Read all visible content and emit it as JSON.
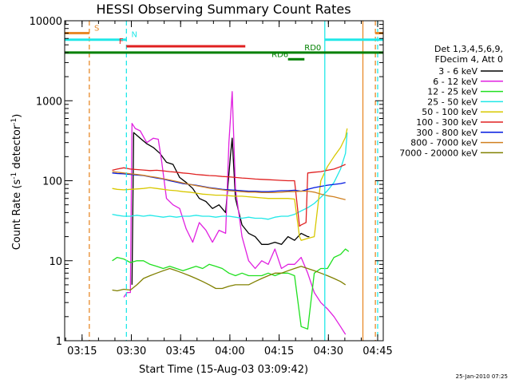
{
  "chart_data": {
    "type": "line",
    "title": "HESSI Observing Summary Count Rates",
    "xlabel": "Start Time (15-Aug-03 03:09:42)",
    "ylabel": "Count Rate (s⁻¹ detector⁻¹)",
    "ylabel_main": "Count Rate (s",
    "ylabel_sup1": "-1",
    "ylabel_mid": " detector",
    "ylabel_sup2": "-1",
    "ylabel_end": ")",
    "x_unit": "minutes since 03:09:42",
    "xlim": [
      0,
      97
    ],
    "ylim": [
      1,
      10000
    ],
    "yscale": "log",
    "x_ticks": [
      {
        "x": 5.3,
        "label": "03:15"
      },
      {
        "x": 20.3,
        "label": "03:30"
      },
      {
        "x": 35.3,
        "label": "03:45"
      },
      {
        "x": 50.3,
        "label": "04:00"
      },
      {
        "x": 65.3,
        "label": "04:15"
      },
      {
        "x": 80.3,
        "label": "04:30"
      },
      {
        "x": 95.3,
        "label": "04:45"
      }
    ],
    "y_ticks": [
      {
        "y": 1,
        "label": "1"
      },
      {
        "y": 10,
        "label": "10"
      },
      {
        "y": 100,
        "label": "100"
      },
      {
        "y": 1000,
        "label": "1000"
      },
      {
        "y": 10000,
        "label": "10000"
      }
    ],
    "legend": {
      "placement": "right",
      "header1": "Det 1,3,4,5,6,9,",
      "header2": "FDecim 4, Att 0",
      "entries": [
        {
          "label": "3 - 6 keV",
          "color": "#000000"
        },
        {
          "label": "6 - 12 keV",
          "color": "#e020e0"
        },
        {
          "label": "12 - 25 keV",
          "color": "#20e020"
        },
        {
          "label": "25 - 50 keV",
          "color": "#20e8e8"
        },
        {
          "label": "50 - 100 keV",
          "color": "#d8c800"
        },
        {
          "label": "100 - 300 keV",
          "color": "#e02020"
        },
        {
          "label": "300 - 800 keV",
          "color": "#0018e0"
        },
        {
          "label": "800 - 7000 keV",
          "color": "#d08020"
        },
        {
          "label": "7000 - 20000 keV",
          "color": "#808000"
        }
      ]
    },
    "series": [
      {
        "name": "3 - 6 keV",
        "color": "#000000",
        "x": [
          20.5,
          21,
          23,
          25,
          27,
          29,
          31,
          33,
          35,
          37,
          39,
          41,
          43,
          45,
          47,
          49,
          50.5,
          51,
          52,
          54,
          56,
          58,
          60,
          62,
          64,
          66,
          68,
          70,
          72,
          74,
          74.5
        ],
        "y": [
          5,
          400,
          340,
          290,
          260,
          220,
          170,
          160,
          110,
          95,
          80,
          60,
          55,
          45,
          50,
          40,
          210,
          340,
          60,
          28,
          22,
          20,
          16,
          16,
          17,
          16,
          20,
          18,
          22,
          20,
          20
        ]
      },
      {
        "name": "6 - 12 keV",
        "color": "#e020e0",
        "x": [
          18,
          19,
          20,
          20.5,
          21.5,
          23,
          25,
          27,
          28.5,
          29.5,
          31,
          33,
          35,
          37,
          39,
          41,
          43,
          45,
          47,
          49,
          50,
          51,
          52,
          53,
          54,
          56,
          58,
          60,
          62,
          64,
          66,
          68,
          70,
          72,
          74,
          76,
          78,
          80,
          82,
          84,
          85.5
        ],
        "y": [
          3.5,
          4,
          4,
          520,
          450,
          420,
          300,
          340,
          330,
          180,
          60,
          50,
          45,
          25,
          17,
          30,
          24,
          17,
          24,
          22,
          300,
          1300,
          80,
          40,
          20,
          10,
          8,
          10,
          9,
          14,
          8,
          9,
          9,
          11,
          7,
          4,
          3,
          2.5,
          2,
          1.5,
          1.2
        ]
      },
      {
        "name": "12 - 25 keV",
        "color": "#20e020",
        "x": [
          14.5,
          16,
          18,
          20,
          22,
          24,
          26,
          28,
          30,
          32,
          34,
          36,
          38,
          40,
          42,
          44,
          46,
          48,
          50,
          52,
          54,
          56,
          58,
          60,
          62,
          64,
          66,
          68,
          70,
          72,
          74,
          76,
          78,
          80,
          82,
          84,
          85.5,
          86.5
        ],
        "y": [
          10,
          11,
          10.5,
          9.5,
          10,
          10,
          9,
          8.5,
          8,
          8.5,
          8,
          7.5,
          8,
          8.5,
          8,
          9,
          8.5,
          8,
          7,
          6.5,
          7,
          6.5,
          6.5,
          6.5,
          7,
          6.5,
          7,
          7,
          6.5,
          1.5,
          1.4,
          7,
          8,
          8,
          11,
          12,
          14,
          13
        ]
      },
      {
        "name": "25 - 50 keV",
        "color": "#20e8e8",
        "x": [
          14.5,
          16,
          18,
          20,
          22,
          24,
          26,
          28,
          30,
          32,
          34,
          36,
          38,
          40,
          42,
          44,
          46,
          48,
          50,
          52,
          54,
          56,
          58,
          60,
          62,
          64,
          66,
          68,
          70,
          72,
          74,
          76,
          78,
          80,
          82,
          84,
          85.5,
          86
        ],
        "y": [
          38,
          37,
          36,
          36,
          37,
          36,
          37,
          36,
          35,
          36,
          35,
          36,
          36,
          37,
          36,
          36,
          35,
          36,
          36,
          35,
          34,
          35,
          34,
          34,
          33,
          35,
          36,
          36,
          38,
          42,
          46,
          52,
          62,
          75,
          95,
          140,
          220,
          400
        ]
      },
      {
        "name": "50 - 100 keV",
        "color": "#d8c800",
        "x": [
          14.5,
          16,
          18,
          20,
          22,
          24,
          26,
          28,
          30,
          32,
          34,
          36,
          38,
          40,
          42,
          44,
          46,
          48,
          50,
          52,
          54,
          56,
          58,
          60,
          62,
          64,
          66,
          68,
          70,
          71.5,
          72,
          74,
          76,
          78,
          80,
          82,
          84,
          85.5,
          86
        ],
        "y": [
          80,
          78,
          77,
          78,
          79,
          80,
          82,
          80,
          78,
          76,
          75,
          73,
          72,
          70,
          68,
          67,
          66,
          66,
          65,
          64,
          64,
          63,
          62,
          61,
          60,
          60,
          60,
          60,
          59,
          20,
          18,
          19,
          20,
          100,
          150,
          200,
          260,
          350,
          450
        ]
      },
      {
        "name": "100 - 300 keV",
        "color": "#e02020",
        "x": [
          14.5,
          16,
          18,
          20,
          22,
          24,
          26,
          28,
          30,
          32,
          34,
          36,
          38,
          40,
          42,
          44,
          46,
          48,
          50,
          52,
          54,
          56,
          58,
          60,
          62,
          64,
          66,
          68,
          70,
          71.5,
          72,
          73.5,
          74,
          76,
          78,
          80,
          82,
          84,
          85.5
        ],
        "y": [
          135,
          140,
          145,
          140,
          138,
          136,
          134,
          135,
          133,
          130,
          128,
          125,
          123,
          120,
          118,
          116,
          115,
          113,
          112,
          110,
          108,
          107,
          105,
          104,
          103,
          102,
          101,
          100,
          100,
          27,
          28,
          30,
          125,
          128,
          130,
          135,
          140,
          150,
          160
        ]
      },
      {
        "name": "300 - 800 keV",
        "color": "#0018e0",
        "x": [
          14.5,
          16,
          18,
          20,
          22,
          24,
          26,
          28,
          30,
          32,
          34,
          36,
          38,
          40,
          42,
          44,
          46,
          48,
          50,
          52,
          54,
          56,
          58,
          60,
          62,
          64,
          66,
          68,
          70,
          72,
          74,
          76,
          78,
          80,
          82,
          84,
          85.5
        ],
        "y": [
          125,
          123,
          122,
          120,
          118,
          116,
          112,
          108,
          105,
          100,
          96,
          92,
          90,
          88,
          85,
          82,
          80,
          78,
          77,
          76,
          75,
          74,
          74,
          73,
          73,
          74,
          75,
          75,
          76,
          74,
          78,
          82,
          85,
          88,
          90,
          92,
          95
        ]
      },
      {
        "name": "800 - 7000 keV",
        "color": "#d08020",
        "x": [
          14.5,
          16,
          18,
          20,
          22,
          24,
          26,
          28,
          30,
          32,
          34,
          36,
          38,
          40,
          42,
          44,
          46,
          48,
          50,
          52,
          54,
          56,
          58,
          60,
          62,
          64,
          66,
          68,
          70,
          72,
          74,
          76,
          78,
          80,
          82,
          84,
          85.5
        ],
        "y": [
          130,
          128,
          125,
          122,
          120,
          117,
          113,
          110,
          106,
          102,
          98,
          94,
          90,
          87,
          84,
          81,
          79,
          77,
          75,
          74,
          73,
          72,
          72,
          71,
          71,
          71,
          72,
          73,
          73,
          74,
          74,
          72,
          68,
          65,
          63,
          60,
          58
        ]
      },
      {
        "name": "7000 - 20000 keV",
        "color": "#808000",
        "x": [
          14.5,
          16,
          18,
          20,
          22,
          24,
          26,
          28,
          30,
          32,
          34,
          36,
          38,
          40,
          42,
          44,
          46,
          48,
          50,
          52,
          54,
          56,
          58,
          60,
          62,
          64,
          66,
          68,
          70,
          72,
          74,
          76,
          78,
          80,
          82,
          84,
          85.5
        ],
        "y": [
          4.3,
          4.2,
          4.4,
          4.3,
          5,
          6,
          6.5,
          7,
          7.5,
          8,
          7.5,
          7,
          6.5,
          6,
          5.5,
          5,
          4.5,
          4.5,
          4.8,
          5,
          5,
          5,
          5.5,
          6,
          6.5,
          7,
          7,
          7.5,
          8,
          8.5,
          8,
          7.5,
          7,
          6.5,
          6,
          5.5,
          5
        ]
      }
    ],
    "verticals": [
      {
        "x": 7.5,
        "color": "#e88a2a",
        "style": "dashed"
      },
      {
        "x": 18.8,
        "color": "#20e8e8",
        "style": "dashed"
      },
      {
        "x": 79.2,
        "color": "#20e8e8",
        "style": "solid"
      },
      {
        "x": 90.8,
        "color": "#e88a2a",
        "style": "solid"
      },
      {
        "x": 94.6,
        "color": "#e88a2a",
        "style": "dashed"
      },
      {
        "x": 95.3,
        "color": "#20e8e8",
        "style": "dashed"
      }
    ],
    "flag_bars": [
      {
        "label": "S",
        "color": "#e88a2a",
        "x_start": 0,
        "x_end": 7.5,
        "y": 7000,
        "label_x": 9
      },
      {
        "label": "",
        "color": "#e88a2a",
        "x_start": 94.6,
        "x_end": 97,
        "y": 7000,
        "label_x": null
      },
      {
        "label": "N",
        "color": "#20e8e8",
        "x_start": 0,
        "x_end": 18.8,
        "y": 5800,
        "label_x": 20.3
      },
      {
        "label": "",
        "color": "#20e8e8",
        "x_start": 79.2,
        "x_end": 97,
        "y": 5800,
        "label_x": null
      },
      {
        "label": "F",
        "color": "#e02020",
        "x_start": 18.8,
        "x_end": 55,
        "y": 4800,
        "label_x": 16.5
      },
      {
        "label": "RD0",
        "color": "#008000",
        "x_start": 0,
        "x_end": 97,
        "y": 4000,
        "label_x": 73
      },
      {
        "label": "RD6",
        "color": "#008000",
        "x_start": 68,
        "x_end": 73,
        "y": 3300,
        "label_x": 63
      }
    ]
  },
  "footer": {
    "timestamp": "25-Jan-2010 07:25"
  }
}
